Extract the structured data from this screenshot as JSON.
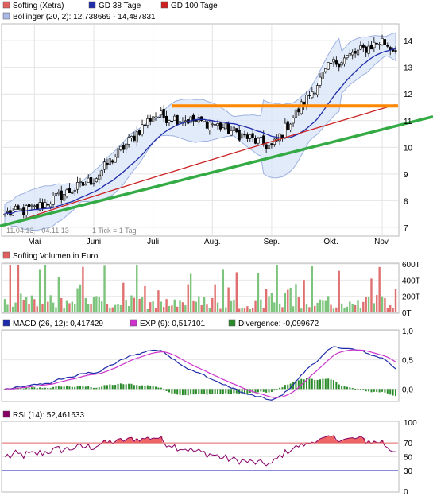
{
  "chart_data": [
    {
      "id": "price",
      "type": "candlestick",
      "title": "",
      "xlabel": "",
      "ylabel": "",
      "legend": [
        {
          "label": "Softing (Xetra)",
          "color": "#e06060"
        },
        {
          "label": "GD 38 Tage",
          "color": "#1f2ba8"
        },
        {
          "label": "GD 100 Tage",
          "color": "#cc2222"
        },
        {
          "label": "Bollinger (20, 2): 12,738669 - 14,487831",
          "color": "#a9b9e8"
        }
      ],
      "x_month_labels": [
        "Mai",
        "Juni",
        "Juli",
        "Aug.",
        "Sep.",
        "Okt.",
        "Nov."
      ],
      "y_ticks": [
        "7",
        "8",
        "9",
        "10",
        "11",
        "12",
        "13",
        "14"
      ],
      "ylim": [
        6.7,
        14.6
      ],
      "date_range_label": "11.04.13 – 04.11.13",
      "tick_label": "1 Tick = 1 Tag",
      "start_value": 7.5,
      "end_value": 13.6,
      "horizontal_line": {
        "value": 11.55,
        "color": "#ff8800"
      },
      "trend_line": {
        "from": 7.05,
        "to": 11.15,
        "color": "#33aa44"
      },
      "key_points": [
        {
          "label": "Mai",
          "value": 7.7
        },
        {
          "label": "Juni",
          "value": 8.8
        },
        {
          "label": "Juli",
          "value": 11.2
        },
        {
          "label": "Aug.",
          "value": 10.9
        },
        {
          "label": "Sep.",
          "value": 10.0
        },
        {
          "label": "Okt.",
          "value": 13.1
        },
        {
          "label": "Nov.",
          "value": 14.0
        }
      ]
    },
    {
      "id": "volume",
      "type": "bar",
      "legend": [
        {
          "label": "Softing Volumen in Euro",
          "color": "#e06060"
        }
      ],
      "y_ticks": [
        "0T",
        "200T",
        "400T",
        "600T"
      ],
      "ylim": [
        0,
        600
      ]
    },
    {
      "id": "macd",
      "type": "line",
      "legend": [
        {
          "label": "MACD (26, 12): 0,417429",
          "color": "#1f2ba8"
        },
        {
          "label": "EXP (9): 0,517101",
          "color": "#cc33cc"
        },
        {
          "label": "Divergence: -0,099672",
          "color": "#2a8a2a"
        }
      ],
      "y_ticks": [
        "0,0",
        "0,5",
        "1,0"
      ],
      "ylim": [
        -0.2,
        1.0
      ]
    },
    {
      "id": "rsi",
      "type": "line",
      "legend": [
        {
          "label": "RSI (14): 52,461633",
          "color": "#880066"
        }
      ],
      "y_ticks": [
        "0",
        "30",
        "50",
        "70",
        "100"
      ],
      "ylim": [
        0,
        100
      ],
      "levels": [
        {
          "value": 70,
          "color": "#e06060"
        },
        {
          "value": 30,
          "color": "#4444cc"
        }
      ]
    }
  ]
}
